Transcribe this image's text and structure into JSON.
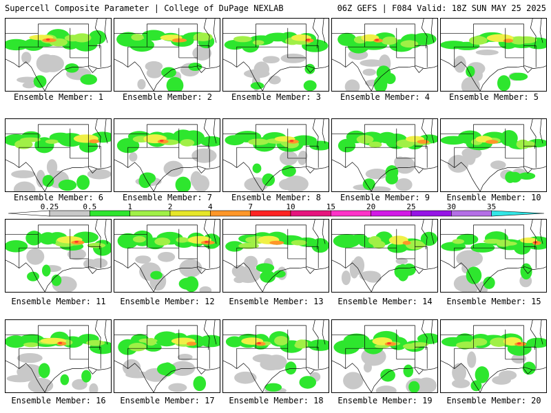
{
  "header": {
    "left": "Supercell Composite Parameter | College of DuPage NEXLAB",
    "right": "06Z GEFS | F084 Valid: 18Z SUN MAY 25 2025"
  },
  "member_label_prefix": "Ensemble Member:",
  "members": [
    1,
    2,
    3,
    4,
    5,
    6,
    7,
    8,
    9,
    10,
    11,
    12,
    13,
    14,
    15,
    16,
    17,
    18,
    19,
    20
  ],
  "colorbar": {
    "labels": [
      "0.25",
      "0.5",
      "1",
      "2",
      "4",
      "7",
      "10",
      "15",
      "20",
      "25",
      "30",
      "35"
    ],
    "colors": [
      "#c8c8c8",
      "#2ee62e",
      "#a0f046",
      "#e6e628",
      "#ff9628",
      "#ff2323",
      "#e6147d",
      "#ff32c8",
      "#d219e6",
      "#9614e6",
      "#b46ee6",
      "#32e6e6"
    ]
  },
  "field_colors": {
    "gray": "#c8c8c8",
    "green": "#2ee62e",
    "lime": "#a0f046",
    "yellow": "#f0f046",
    "orange": "#ff9628",
    "red": "#ff3c28"
  }
}
